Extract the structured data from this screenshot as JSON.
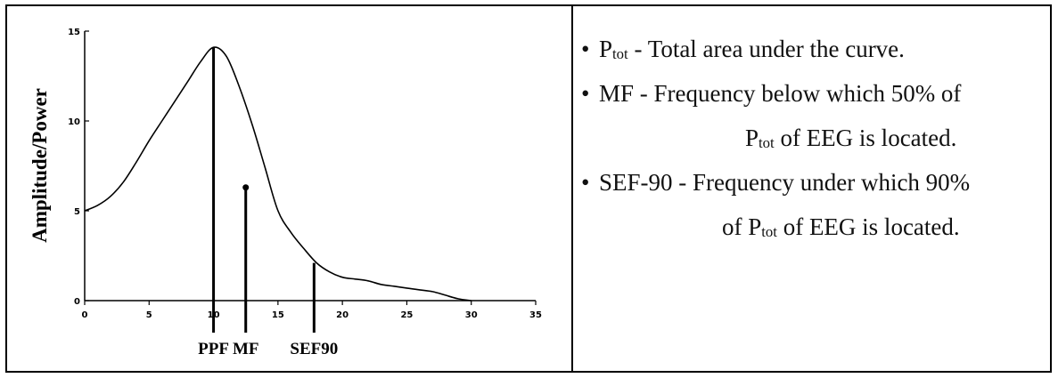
{
  "chart_data": {
    "type": "line",
    "title": "",
    "xlabel": "",
    "ylabel": "Amplitude/Power",
    "xlim": [
      0,
      35
    ],
    "ylim": [
      0,
      15
    ],
    "xticks": [
      "0",
      "5",
      "10",
      "15",
      "20",
      "25",
      "30",
      "35"
    ],
    "yticks": [
      "0",
      "5",
      "10",
      "15"
    ],
    "grid": false,
    "series": [
      {
        "x": [
          0,
          1,
          2,
          3,
          4,
          5,
          6,
          7,
          8,
          9,
          10,
          11,
          12,
          13,
          14,
          15,
          16,
          17,
          18,
          19,
          20,
          21,
          22,
          23,
          24,
          25,
          26,
          27,
          28,
          29,
          30
        ],
        "values": [
          5.0,
          5.3,
          5.8,
          6.6,
          7.7,
          8.9,
          10.0,
          11.1,
          12.2,
          13.3,
          14.1,
          13.6,
          11.9,
          9.8,
          7.4,
          5.0,
          3.8,
          2.9,
          2.1,
          1.6,
          1.3,
          1.2,
          1.1,
          0.9,
          0.8,
          0.7,
          0.6,
          0.5,
          0.3,
          0.1,
          0.0
        ]
      }
    ],
    "markers": [
      {
        "label": "PPF",
        "x": 10,
        "y": 14.1
      },
      {
        "label": "MF",
        "x": 12.5,
        "y": 6.3
      },
      {
        "label": "SEF90",
        "x": 17.8,
        "y": 2.1
      }
    ]
  },
  "legend": {
    "item1": {
      "p": "P",
      "sub": "tot",
      "rest": " - Total area under the curve."
    },
    "item2": {
      "text": "MF - Frequency below which 50% of"
    },
    "item3": {
      "p": "P",
      "sub": "tot",
      "rest": " of EEG is located."
    },
    "item4": {
      "text": "SEF-90 - Frequency under which 90%"
    },
    "item5": {
      "pre": "of ",
      "p": "P",
      "sub": "tot",
      "rest": " of EEG is located."
    }
  }
}
